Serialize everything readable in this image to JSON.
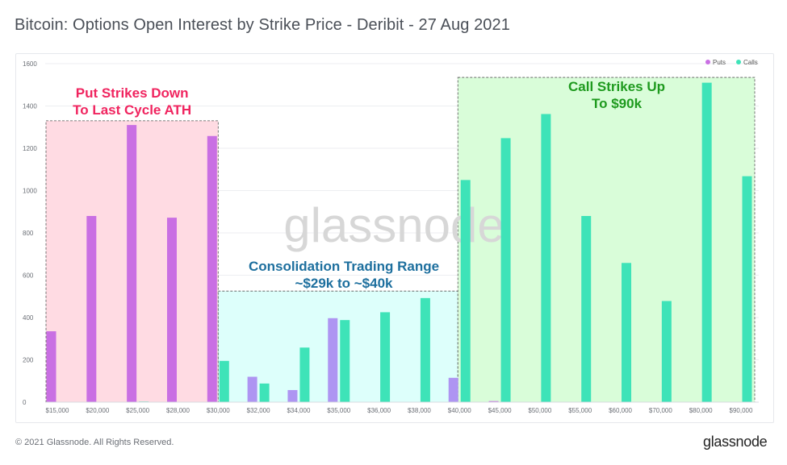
{
  "header": {
    "title": "Bitcoin: Options Open Interest by Strike Price - Deribit - 27 Aug 2021"
  },
  "footer": {
    "copyright": "© 2021 Glassnode. All Rights Reserved.",
    "logo": "glassnode"
  },
  "watermark": "glassnode",
  "colors": {
    "puts": "#c96fe3",
    "puts_mid": "#ae95f2",
    "calls": "#3ee3b8",
    "put_zone_fill": "#ffdbe3",
    "mid_zone_fill": "#ddfffb",
    "call_zone_fill": "#d9fdd9",
    "put_text": "#f0245f",
    "mid_text": "#1d6f9e",
    "call_text": "#1e9a1e"
  },
  "annotations": [
    {
      "lines": [
        "Put Strikes Down",
        "To Last Cycle ATH"
      ],
      "zone": "put"
    },
    {
      "lines": [
        "Consolidation Trading Range",
        "~$29k to ~$40k"
      ],
      "zone": "mid"
    },
    {
      "lines": [
        "Call Strikes Up",
        "To $90k"
      ],
      "zone": "call"
    }
  ],
  "chart_data": {
    "type": "bar",
    "title": "Bitcoin: Options Open Interest by Strike Price - Deribit - 27 Aug 2021",
    "categories": [
      "$15,000",
      "$20,000",
      "$25,000",
      "$28,000",
      "$30,000",
      "$32,000",
      "$34,000",
      "$35,000",
      "$36,000",
      "$38,000",
      "$40,000",
      "$45,000",
      "$50,000",
      "$55,000",
      "$60,000",
      "$70,000",
      "$80,000",
      "$90,000"
    ],
    "series": [
      {
        "name": "Puts",
        "values": [
          335,
          880,
          1310,
          872,
          1258,
          120,
          57,
          397,
          0,
          0,
          115,
          5,
          0,
          0,
          0,
          0,
          0,
          0
        ]
      },
      {
        "name": "Calls",
        "values": [
          0,
          0,
          3,
          0,
          195,
          88,
          258,
          388,
          425,
          492,
          1050,
          1248,
          1362,
          880,
          658,
          478,
          1510,
          1068
        ]
      }
    ],
    "yticks": [
      0,
      200,
      400,
      600,
      800,
      1000,
      1200,
      1400,
      1600
    ],
    "ylim": [
      0,
      1600
    ],
    "grid": true,
    "legend": "top-right",
    "zones": [
      {
        "name": "put",
        "from": 0,
        "to": 4,
        "top": 1330
      },
      {
        "name": "mid",
        "from": 4,
        "to": 10,
        "top": 525
      },
      {
        "name": "call",
        "from": 10,
        "to": 17,
        "top": 1535
      }
    ]
  }
}
